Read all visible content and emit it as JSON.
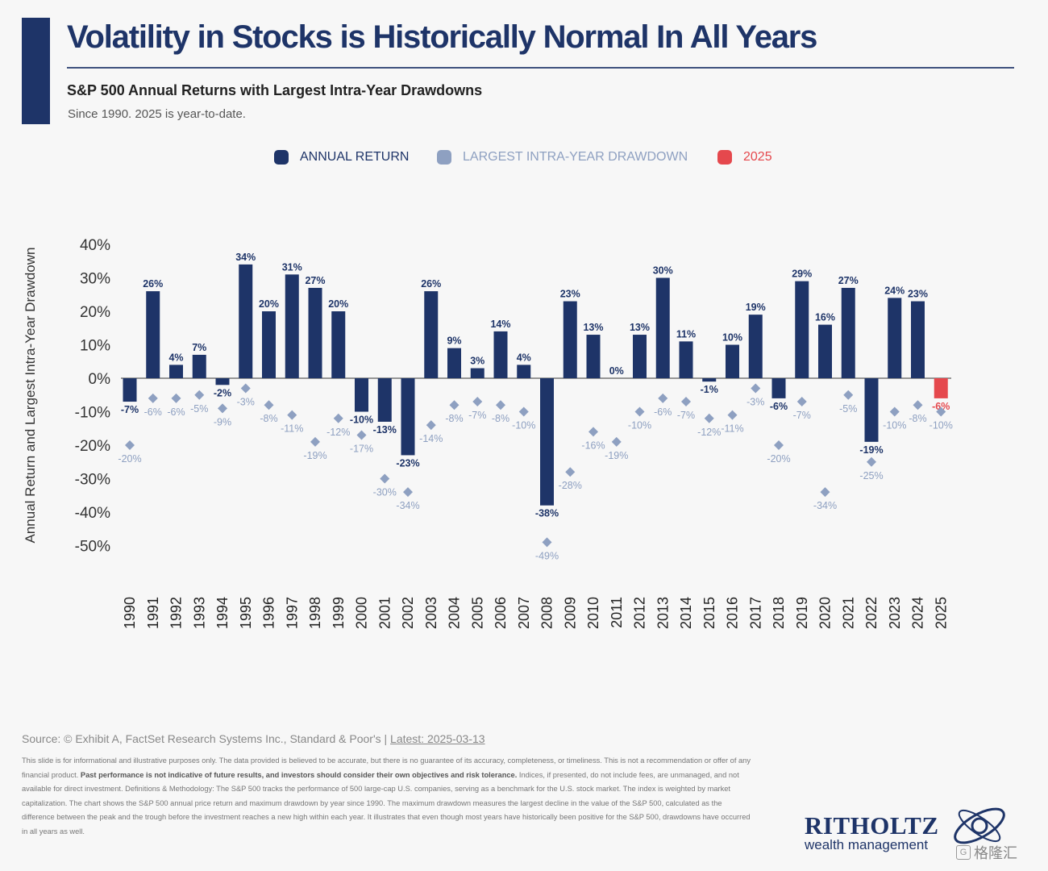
{
  "header": {
    "title": "Volatility in Stocks is Historically Normal In All Years",
    "subtitle": "S&P 500 Annual Returns with Largest Intra-Year Drawdowns",
    "note": "Since 1990. 2025 is year-to-date."
  },
  "legend": {
    "annual_return": "ANNUAL RETURN",
    "drawdown": "LARGEST INTRA-YEAR DRAWDOWN",
    "ytd": "2025"
  },
  "colors": {
    "annual_return": "#1e3468",
    "drawdown": "#8ea0c1",
    "ytd": "#e5484d",
    "title": "#1e3468"
  },
  "chart_data": {
    "type": "bar",
    "ylabel": "Annual Return and Largest Intra-Year Drawdown",
    "ylim": [
      -50,
      40
    ],
    "y_ticks": [
      "40%",
      "30%",
      "20%",
      "10%",
      "0%",
      "-10%",
      "-20%",
      "-30%",
      "-40%",
      "-50%"
    ],
    "categories": [
      "1990",
      "1991",
      "1992",
      "1993",
      "1994",
      "1995",
      "1996",
      "1997",
      "1998",
      "1999",
      "2000",
      "2001",
      "2002",
      "2003",
      "2004",
      "2005",
      "2006",
      "2007",
      "2008",
      "2009",
      "2010",
      "2011",
      "2012",
      "2013",
      "2014",
      "2015",
      "2016",
      "2017",
      "2018",
      "2019",
      "2020",
      "2021",
      "2022",
      "2023",
      "2024",
      "2025"
    ],
    "series": [
      {
        "name": "ANNUAL RETURN",
        "values": [
          -7,
          26,
          4,
          7,
          -2,
          34,
          20,
          31,
          27,
          20,
          -10,
          -13,
          -23,
          26,
          9,
          3,
          14,
          4,
          -38,
          23,
          13,
          0,
          13,
          30,
          11,
          -1,
          10,
          19,
          -6,
          29,
          16,
          27,
          -19,
          24,
          23,
          -6
        ],
        "labels": [
          "-7%",
          "26%",
          "4%",
          "7%",
          "-2%",
          "34%",
          "20%",
          "31%",
          "27%",
          "20%",
          "-10%",
          "-13%",
          "-23%",
          "26%",
          "9%",
          "3%",
          "14%",
          "4%",
          "-38%",
          "23%",
          "13%",
          "0%",
          "13%",
          "30%",
          "11%",
          "-1%",
          "10%",
          "19%",
          "-6%",
          "29%",
          "16%",
          "27%",
          "-19%",
          "24%",
          "23%",
          "-6%"
        ]
      },
      {
        "name": "LARGEST INTRA-YEAR DRAWDOWN",
        "values": [
          -20,
          -6,
          -6,
          -5,
          -9,
          -3,
          -8,
          -11,
          -19,
          -12,
          -17,
          -30,
          -34,
          -14,
          -8,
          -7,
          -8,
          -10,
          -49,
          -28,
          -16,
          -19,
          -10,
          -6,
          -7,
          -12,
          -11,
          -3,
          -20,
          -7,
          -34,
          -5,
          -25,
          -10,
          -8,
          -10
        ],
        "labels": [
          "-20%",
          "-6%",
          "-6%",
          "-5%",
          "-9%",
          "-3%",
          "-8%",
          "-11%",
          "-19%",
          "-12%",
          "-17%",
          "-30%",
          "-34%",
          "-14%",
          "-8%",
          "-7%",
          "-8%",
          "-10%",
          "-49%",
          "-28%",
          "-16%",
          "-19%",
          "-10%",
          "-6%",
          "-7%",
          "-12%",
          "-11%",
          "-3%",
          "-20%",
          "-7%",
          "-34%",
          "-5%",
          "-25%",
          "-10%",
          "-8%",
          "-10%"
        ]
      }
    ],
    "highlight_category": "2025",
    "legend_position": "top"
  },
  "footer": {
    "source_prefix": "Source: © Exhibit A, FactSet Research Systems Inc., Standard & Poor's | ",
    "latest": "Latest: 2025-03-13",
    "disclaimer_1": "This slide is for informational and illustrative purposes only. The data provided is believed to be accurate, but there is no guarantee of its accuracy, completeness, or timeliness. This is not a recommendation or offer of any financial product. ",
    "disclaimer_bold": "Past performance is not indicative of future results, and investors should consider their own objectives and risk tolerance.",
    "disclaimer_2": " Indices, if presented, do not include fees, are unmanaged, and not available for direct investment. Definitions & Methodology: The S&P 500 tracks the performance of 500 large-cap U.S. companies, serving as a benchmark for the U.S. stock market. The index is weighted by market capitalization. The chart shows the S&P 500 annual price return and maximum drawdown by year since 1990. The maximum drawdown measures the largest decline in the value of the S&P 500, calculated as the difference between the peak and the trough before the investment reaches a new high within each year. It illustrates that even though most years have historically been positive for the S&P 500, drawdowns have occurred in all years as well."
  },
  "brand": {
    "name": "RITHOLTZ",
    "tagline": "wealth management",
    "watermark": "格隆汇",
    "watermark_glyph": "G"
  }
}
